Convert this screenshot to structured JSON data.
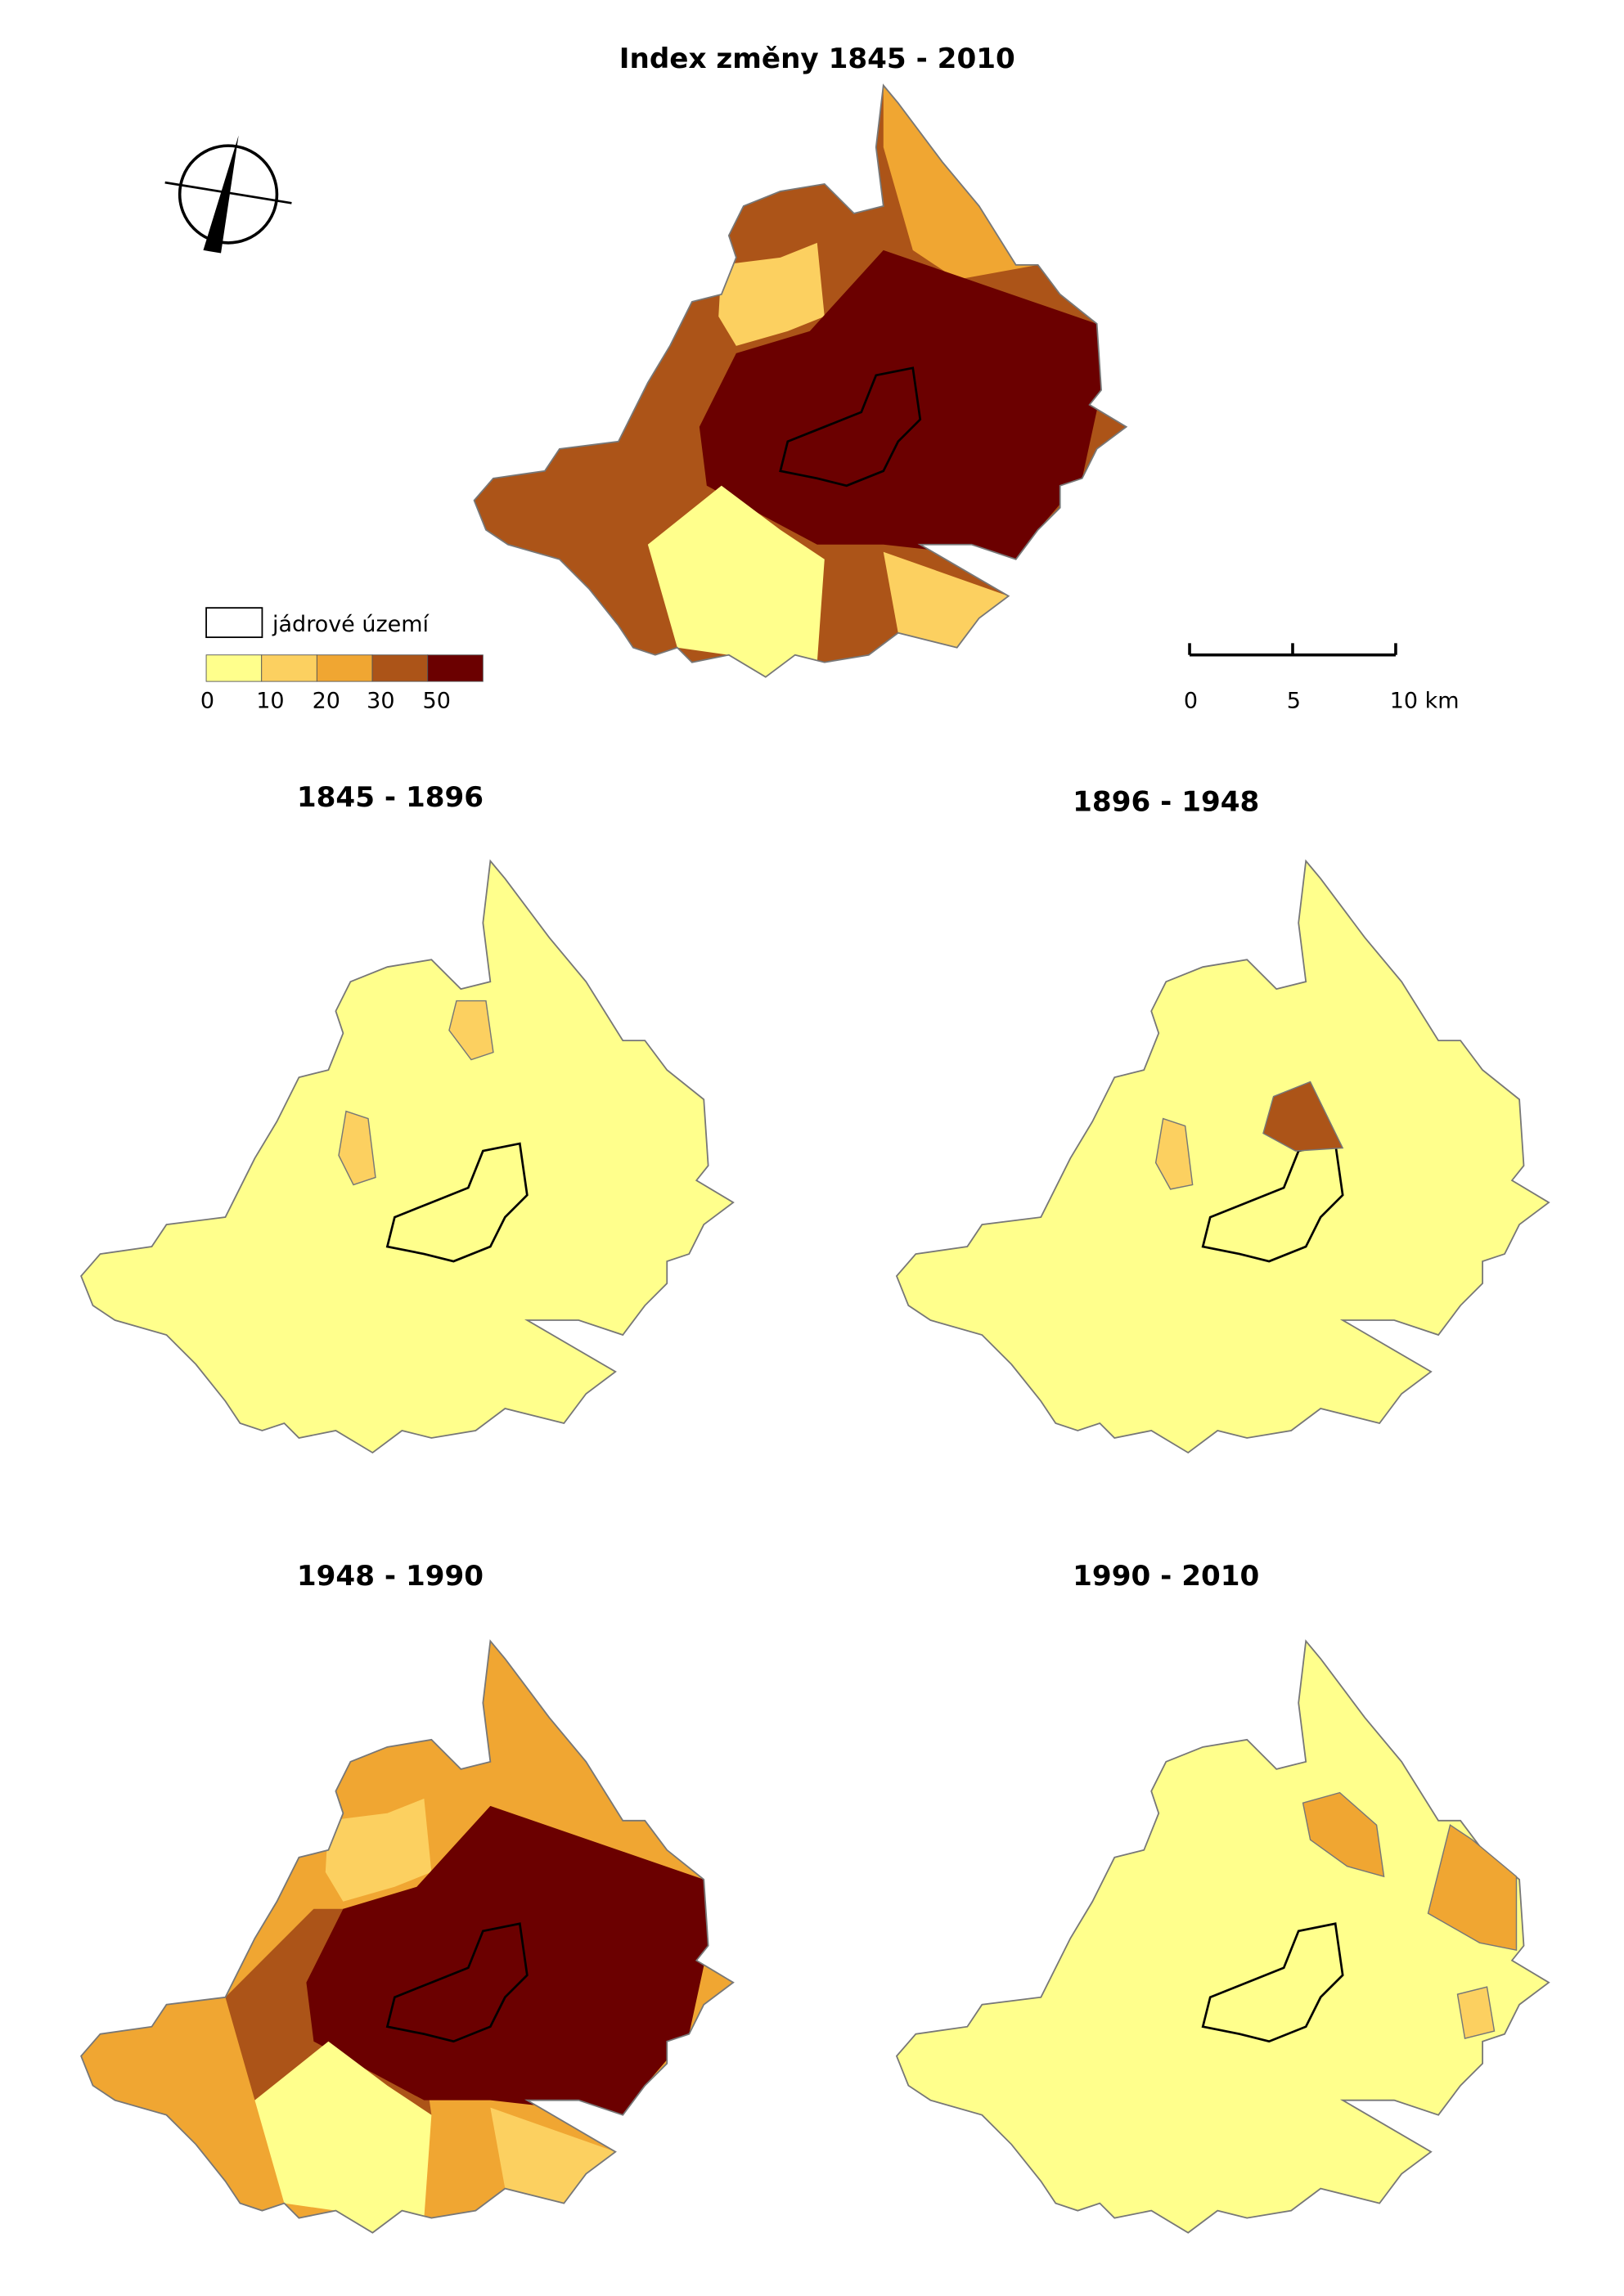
{
  "title": "Index změny 1845 - 2010",
  "legend": {
    "core_label": "jádrové území",
    "breaks": [
      0,
      10,
      20,
      30,
      50
    ],
    "colors": [
      "#ffff8c",
      "#fcd060",
      "#f0a632",
      "#ac5418",
      "#6b0000"
    ]
  },
  "scale_bar": {
    "ticks": [
      0,
      5,
      {
        "value": 10,
        "label": "10 km"
      }
    ]
  },
  "panels": [
    {
      "title": "1845 - 1896"
    },
    {
      "title": "1896 - 1948"
    },
    {
      "title": "1948 - 1990"
    },
    {
      "title": "1990 - 2010"
    }
  ]
}
